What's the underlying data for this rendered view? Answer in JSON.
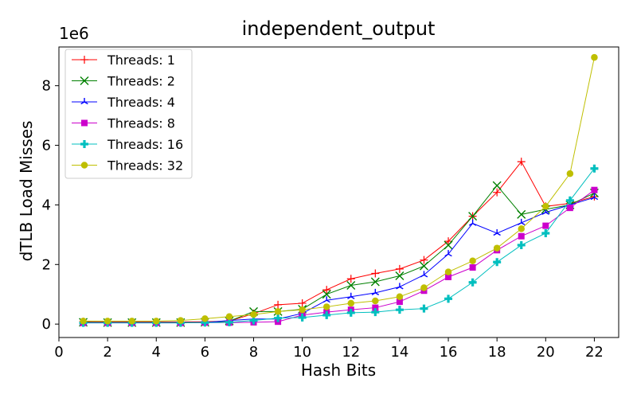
{
  "chart_data": {
    "type": "line",
    "title": "independent_output",
    "xlabel": "Hash Bits",
    "ylabel": "dTLB Load Misses",
    "y_multiplier_label": "1e6",
    "xlim": [
      0,
      23
    ],
    "ylim": [
      -0.45,
      9.3
    ],
    "xticks": [
      0,
      2,
      4,
      6,
      8,
      10,
      12,
      14,
      16,
      18,
      20,
      22
    ],
    "yticks": [
      0,
      2,
      4,
      6,
      8
    ],
    "legend_position": "upper-left",
    "x": [
      1,
      2,
      3,
      4,
      5,
      6,
      7,
      8,
      9,
      10,
      11,
      12,
      13,
      14,
      15,
      16,
      17,
      18,
      19,
      20,
      21,
      22
    ],
    "series": [
      {
        "name": "Threads: 1",
        "color": "#ff0000",
        "marker": "plus",
        "values": [
          0.08,
          0.07,
          0.07,
          0.07,
          0.07,
          0.08,
          0.1,
          0.35,
          0.65,
          0.7,
          1.15,
          1.52,
          1.7,
          1.85,
          2.15,
          2.78,
          3.62,
          4.42,
          5.45,
          3.95,
          4.05,
          4.28
        ]
      },
      {
        "name": "Threads: 2",
        "color": "#008000",
        "marker": "x",
        "values": [
          0.06,
          0.05,
          0.05,
          0.05,
          0.05,
          0.06,
          0.1,
          0.42,
          0.42,
          0.5,
          1.0,
          1.3,
          1.42,
          1.62,
          1.95,
          2.65,
          3.62,
          4.65,
          3.68,
          3.85,
          4.0,
          4.4
        ]
      },
      {
        "name": "Threads: 4",
        "color": "#0000ff",
        "marker": "tri",
        "values": [
          0.05,
          0.05,
          0.05,
          0.05,
          0.05,
          0.05,
          0.12,
          0.17,
          0.17,
          0.36,
          0.8,
          0.92,
          1.05,
          1.25,
          1.65,
          2.35,
          3.38,
          3.05,
          3.4,
          3.75,
          4.0,
          4.25
        ]
      },
      {
        "name": "Threads: 8",
        "color": "#cc00cc",
        "marker": "square",
        "values": [
          0.04,
          0.04,
          0.04,
          0.04,
          0.04,
          0.05,
          0.05,
          0.06,
          0.08,
          0.3,
          0.4,
          0.48,
          0.55,
          0.75,
          1.12,
          1.58,
          1.9,
          2.48,
          2.95,
          3.3,
          3.9,
          4.5
        ]
      },
      {
        "name": "Threads: 16",
        "color": "#00bfbf",
        "marker": "plus-bold",
        "values": [
          0.04,
          0.04,
          0.04,
          0.04,
          0.04,
          0.05,
          0.06,
          0.12,
          0.2,
          0.22,
          0.3,
          0.38,
          0.4,
          0.48,
          0.52,
          0.85,
          1.4,
          2.08,
          2.65,
          3.05,
          4.15,
          5.22
        ]
      },
      {
        "name": "Threads: 32",
        "color": "#bfbf00",
        "marker": "circle",
        "values": [
          0.1,
          0.1,
          0.1,
          0.1,
          0.12,
          0.18,
          0.25,
          0.32,
          0.42,
          0.48,
          0.58,
          0.7,
          0.78,
          0.92,
          1.22,
          1.75,
          2.12,
          2.55,
          3.2,
          3.95,
          5.05,
          8.95
        ]
      }
    ]
  }
}
